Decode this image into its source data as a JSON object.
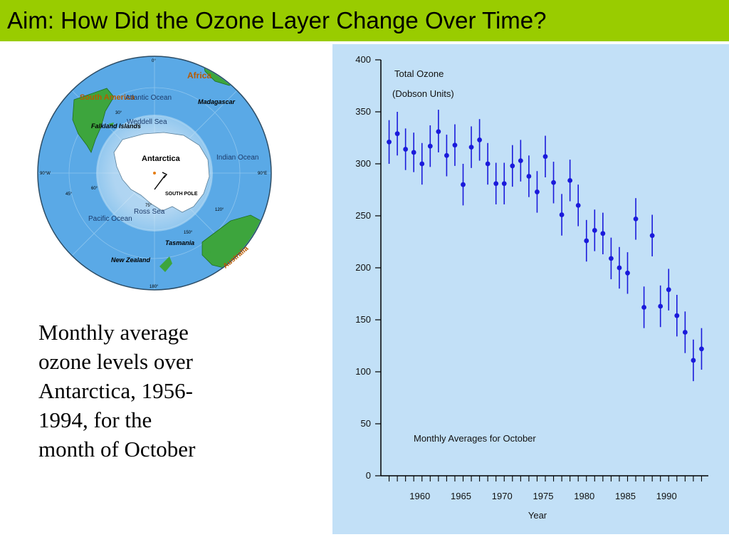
{
  "slide": {
    "title": "Aim: How Did the Ozone Layer Change Over Time?",
    "caption_lines": [
      "Monthly average",
      "ozone levels over",
      "Antarctica, 1956-",
      "1994, for the",
      "month of October"
    ]
  },
  "map": {
    "labels": {
      "africa": "Africa",
      "south_america": "South America",
      "atlantic": "Atlantic Ocean",
      "madagascar": "Madagascar",
      "falkland": "Falkland Islands",
      "weddell": "Weddell Sea",
      "antarctica": "Antarctica",
      "south_pole": "SOUTH POLE",
      "indian": "Indian Ocean",
      "pacific": "Pacific Ocean",
      "ross": "Ross Sea",
      "tasmania": "Tasmania",
      "australia": "Australia",
      "new_zealand": "New Zealand",
      "deg_0": "0°",
      "deg_180": "180°",
      "deg_90w": "90°W",
      "deg_90e": "90°E",
      "lat_30": "30°",
      "lat_45": "45°",
      "lat_60": "60°",
      "lat_75": "75°",
      "lon_120": "120°",
      "lon_150": "150°"
    }
  },
  "colors": {
    "title_bar": "#99cc00",
    "chart_bg": "#c2e0f7",
    "marker": "#1a1adb",
    "ocean": "#5aa9e6",
    "land": "#3da53d"
  },
  "chart_data": {
    "type": "scatter",
    "title": "Total Ozone",
    "subtitle": "(Dobson Units)",
    "annotation": "Monthly Averages for October",
    "xlabel": "Year",
    "ylabel": "",
    "xlim": [
      1955,
      1995
    ],
    "ylim": [
      0,
      400
    ],
    "x_ticks": [
      1960,
      1965,
      1970,
      1975,
      1980,
      1985,
      1990
    ],
    "y_ticks": [
      0,
      50,
      100,
      150,
      200,
      250,
      300,
      350,
      400
    ],
    "grid": false,
    "error_bars": true,
    "series": [
      {
        "points": [
          {
            "x": 1956,
            "y": 321,
            "lo": 300,
            "hi": 342
          },
          {
            "x": 1957,
            "y": 329,
            "lo": 308,
            "hi": 350
          },
          {
            "x": 1958,
            "y": 314,
            "lo": 294,
            "hi": 334
          },
          {
            "x": 1959,
            "y": 311,
            "lo": 292,
            "hi": 330
          },
          {
            "x": 1960,
            "y": 300,
            "lo": 280,
            "hi": 320
          },
          {
            "x": 1961,
            "y": 317,
            "lo": 297,
            "hi": 337
          },
          {
            "x": 1962,
            "y": 331,
            "lo": 311,
            "hi": 352
          },
          {
            "x": 1963,
            "y": 308,
            "lo": 288,
            "hi": 328
          },
          {
            "x": 1964,
            "y": 318,
            "lo": 298,
            "hi": 338
          },
          {
            "x": 1965,
            "y": 280,
            "lo": 260,
            "hi": 300
          },
          {
            "x": 1966,
            "y": 316,
            "lo": 296,
            "hi": 336
          },
          {
            "x": 1967,
            "y": 323,
            "lo": 303,
            "hi": 343
          },
          {
            "x": 1968,
            "y": 300,
            "lo": 280,
            "hi": 320
          },
          {
            "x": 1969,
            "y": 281,
            "lo": 261,
            "hi": 301
          },
          {
            "x": 1970,
            "y": 281,
            "lo": 261,
            "hi": 301
          },
          {
            "x": 1971,
            "y": 298,
            "lo": 278,
            "hi": 318
          },
          {
            "x": 1972,
            "y": 303,
            "lo": 283,
            "hi": 323
          },
          {
            "x": 1973,
            "y": 288,
            "lo": 268,
            "hi": 308
          },
          {
            "x": 1974,
            "y": 273,
            "lo": 253,
            "hi": 293
          },
          {
            "x": 1975,
            "y": 307,
            "lo": 287,
            "hi": 327
          },
          {
            "x": 1976,
            "y": 282,
            "lo": 262,
            "hi": 302
          },
          {
            "x": 1977,
            "y": 251,
            "lo": 231,
            "hi": 271
          },
          {
            "x": 1978,
            "y": 284,
            "lo": 264,
            "hi": 304
          },
          {
            "x": 1979,
            "y": 260,
            "lo": 240,
            "hi": 280
          },
          {
            "x": 1980,
            "y": 226,
            "lo": 206,
            "hi": 246
          },
          {
            "x": 1981,
            "y": 236,
            "lo": 216,
            "hi": 256
          },
          {
            "x": 1982,
            "y": 233,
            "lo": 213,
            "hi": 253
          },
          {
            "x": 1983,
            "y": 209,
            "lo": 189,
            "hi": 229
          },
          {
            "x": 1984,
            "y": 200,
            "lo": 180,
            "hi": 220
          },
          {
            "x": 1985,
            "y": 195,
            "lo": 175,
            "hi": 215
          },
          {
            "x": 1986,
            "y": 247,
            "lo": 227,
            "hi": 267
          },
          {
            "x": 1987,
            "y": 162,
            "lo": 142,
            "hi": 182
          },
          {
            "x": 1988,
            "y": 231,
            "lo": 211,
            "hi": 251
          },
          {
            "x": 1989,
            "y": 163,
            "lo": 143,
            "hi": 183
          },
          {
            "x": 1990,
            "y": 179,
            "lo": 159,
            "hi": 199
          },
          {
            "x": 1991,
            "y": 154,
            "lo": 134,
            "hi": 174
          },
          {
            "x": 1992,
            "y": 138,
            "lo": 118,
            "hi": 158
          },
          {
            "x": 1993,
            "y": 111,
            "lo": 91,
            "hi": 131
          },
          {
            "x": 1994,
            "y": 122,
            "lo": 102,
            "hi": 142
          }
        ]
      }
    ]
  }
}
